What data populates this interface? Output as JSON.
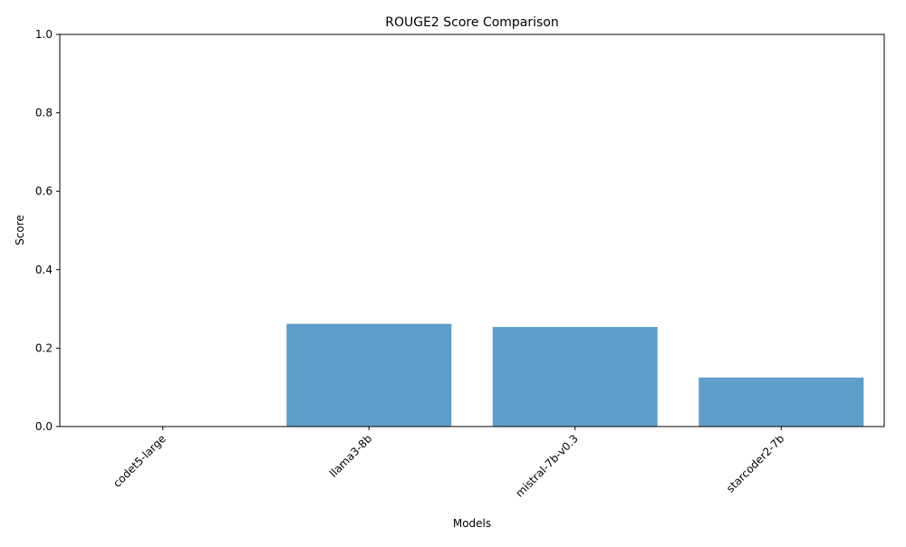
{
  "chart_data": {
    "type": "bar",
    "title": "ROUGE2 Score Comparison",
    "xlabel": "Models",
    "ylabel": "Score",
    "categories": [
      "codet5-large",
      "llama3-8b",
      "mistral-7b-v0.3",
      "starcoder2-7b"
    ],
    "values": [
      0.0,
      0.262,
      0.254,
      0.125
    ],
    "ylim": [
      0,
      1.0
    ],
    "yticks": [
      "0.0",
      "0.2",
      "0.4",
      "0.6",
      "0.8",
      "1.0"
    ],
    "bar_color": "#5f9ecb",
    "grid": false,
    "legend": "none"
  }
}
